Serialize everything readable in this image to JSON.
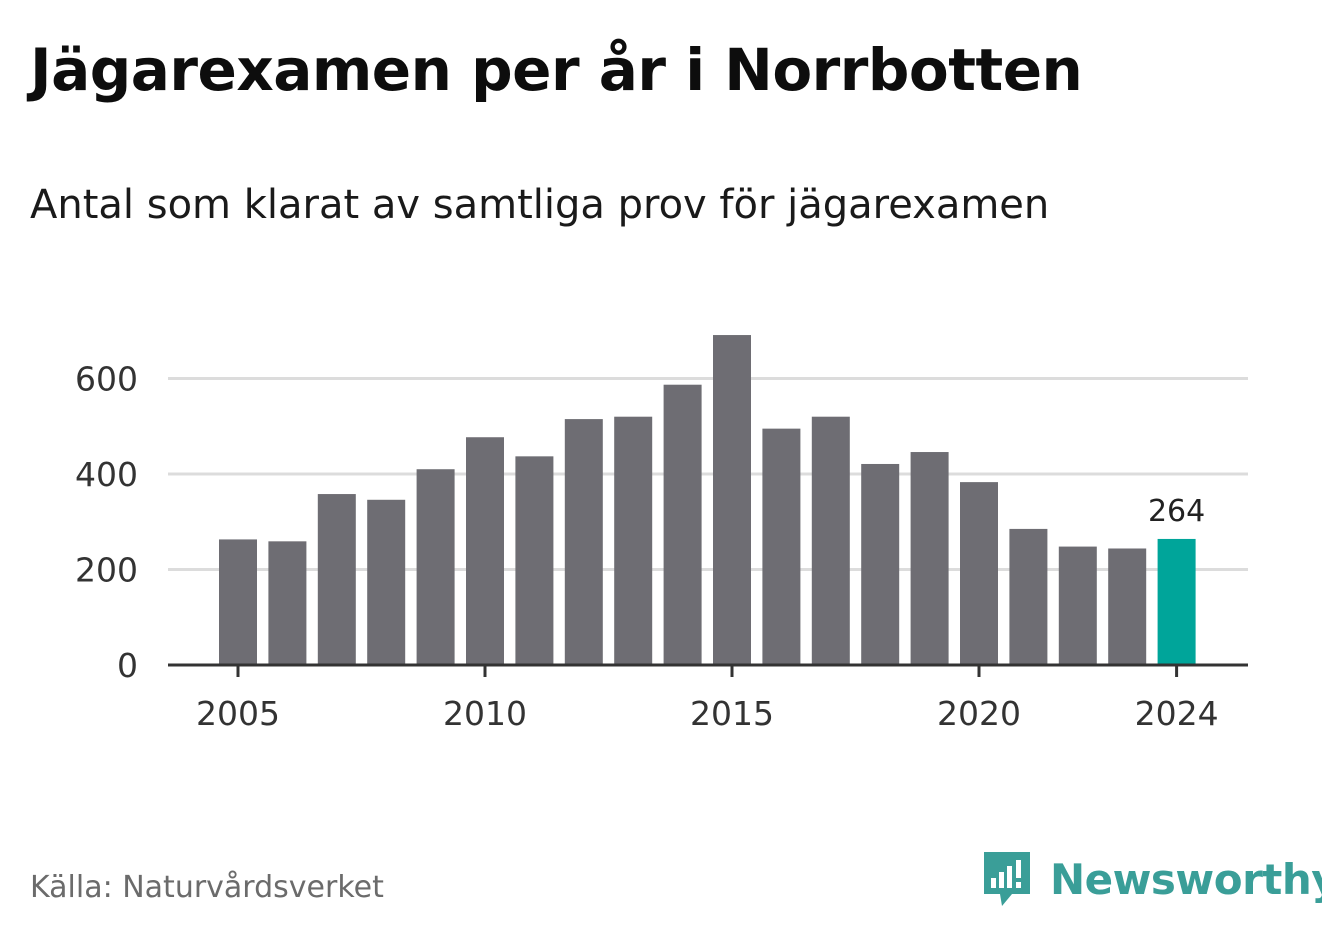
{
  "title": "Jägarexamen per år i Norrbotten",
  "subtitle": "Antal som klarat av samtliga prov för jägarexamen",
  "source": "Källa: Naturvårdsverket",
  "brand": {
    "name": "Newsworthy",
    "icon": "newsworthy-logo-icon",
    "color": "#3a9e98"
  },
  "colors": {
    "bar": "#6e6d73",
    "highlight": "#00a59a",
    "grid": "#dcdcdc",
    "axis": "#333333"
  },
  "chart_data": {
    "type": "bar",
    "title": "Jägarexamen per år i Norrbotten",
    "subtitle": "Antal som klarat av samtliga prov för jägarexamen",
    "xlabel": "",
    "ylabel": "",
    "categories": [
      2005,
      2006,
      2007,
      2008,
      2009,
      2010,
      2011,
      2012,
      2013,
      2014,
      2015,
      2016,
      2017,
      2018,
      2019,
      2020,
      2021,
      2022,
      2023,
      2024
    ],
    "values": [
      263,
      259,
      358,
      346,
      410,
      477,
      437,
      515,
      520,
      587,
      691,
      495,
      520,
      421,
      446,
      383,
      285,
      248,
      244,
      264
    ],
    "highlight": {
      "category": 2024,
      "label": "264"
    },
    "ylim": [
      0,
      700
    ],
    "yticks": [
      0,
      200,
      400,
      600
    ],
    "xticks": [
      "2005",
      "2010",
      "2015",
      "2020",
      "2024"
    ],
    "grid": "horizontal"
  }
}
